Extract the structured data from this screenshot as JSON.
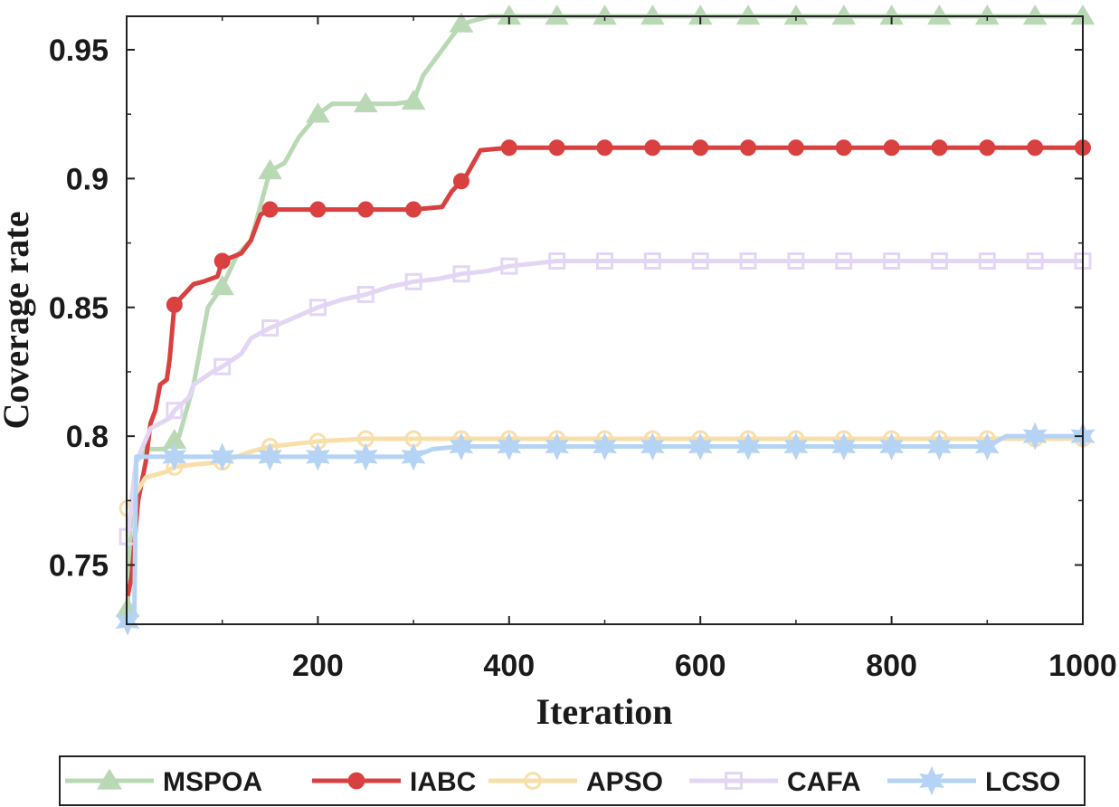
{
  "chart_data": {
    "type": "line",
    "xlabel": "Iteration",
    "ylabel": "Coverage rate",
    "xlim": [
      0,
      1000
    ],
    "ylim": [
      0.727,
      0.963
    ],
    "xticks": [
      {
        "value": 200,
        "label": "200"
      },
      {
        "value": 400,
        "label": "400"
      },
      {
        "value": 600,
        "label": "600"
      },
      {
        "value": 800,
        "label": "800"
      },
      {
        "value": 1000,
        "label": "1000"
      }
    ],
    "yticks": [
      {
        "value": 0.75,
        "label": "0.75"
      },
      {
        "value": 0.8,
        "label": "0.8"
      },
      {
        "value": 0.85,
        "label": "0.85"
      },
      {
        "value": 0.9,
        "label": "0.9"
      },
      {
        "value": 0.95,
        "label": "0.95"
      }
    ],
    "grid": false,
    "legend_position": "bottom, outside, horizontal",
    "series": [
      {
        "name": "MSPOA",
        "color": "#b9d9b4",
        "marker": "triangle",
        "points": [
          [
            1,
            0.733
          ],
          [
            5,
            0.775
          ],
          [
            10,
            0.79
          ],
          [
            20,
            0.795
          ],
          [
            40,
            0.795
          ],
          [
            55,
            0.8
          ],
          [
            70,
            0.82
          ],
          [
            85,
            0.85
          ],
          [
            100,
            0.858
          ],
          [
            115,
            0.87
          ],
          [
            130,
            0.876
          ],
          [
            150,
            0.903
          ],
          [
            165,
            0.906
          ],
          [
            180,
            0.916
          ],
          [
            200,
            0.925
          ],
          [
            215,
            0.929
          ],
          [
            250,
            0.929
          ],
          [
            280,
            0.929
          ],
          [
            300,
            0.93
          ],
          [
            310,
            0.94
          ],
          [
            330,
            0.95
          ],
          [
            350,
            0.96
          ],
          [
            380,
            0.963
          ],
          [
            400,
            0.963
          ],
          [
            1000,
            0.963
          ]
        ],
        "marker_x": [
          1,
          50,
          100,
          150,
          200,
          250,
          300,
          350,
          400,
          450,
          500,
          550,
          600,
          650,
          700,
          750,
          800,
          850,
          900,
          950,
          1000
        ]
      },
      {
        "name": "IABC",
        "color": "#d94040",
        "marker": "circle",
        "points": [
          [
            1,
            0.738
          ],
          [
            5,
            0.745
          ],
          [
            12,
            0.775
          ],
          [
            20,
            0.79
          ],
          [
            25,
            0.805
          ],
          [
            30,
            0.81
          ],
          [
            35,
            0.82
          ],
          [
            42,
            0.822
          ],
          [
            45,
            0.83
          ],
          [
            50,
            0.851
          ],
          [
            60,
            0.855
          ],
          [
            70,
            0.859
          ],
          [
            80,
            0.86
          ],
          [
            95,
            0.862
          ],
          [
            100,
            0.868
          ],
          [
            120,
            0.871
          ],
          [
            130,
            0.876
          ],
          [
            140,
            0.886
          ],
          [
            150,
            0.888
          ],
          [
            180,
            0.888
          ],
          [
            200,
            0.888
          ],
          [
            250,
            0.888
          ],
          [
            300,
            0.888
          ],
          [
            330,
            0.889
          ],
          [
            340,
            0.895
          ],
          [
            355,
            0.901
          ],
          [
            370,
            0.911
          ],
          [
            400,
            0.912
          ],
          [
            1000,
            0.912
          ]
        ],
        "marker_x": [
          50,
          100,
          150,
          200,
          250,
          300,
          350,
          400,
          450,
          500,
          550,
          600,
          650,
          700,
          750,
          800,
          850,
          900,
          950,
          1000
        ]
      },
      {
        "name": "APSO",
        "color": "#f8dfaa",
        "marker": "circle-open",
        "points": [
          [
            1,
            0.772
          ],
          [
            10,
            0.778
          ],
          [
            20,
            0.784
          ],
          [
            40,
            0.786
          ],
          [
            50,
            0.788
          ],
          [
            70,
            0.789
          ],
          [
            100,
            0.79
          ],
          [
            130,
            0.794
          ],
          [
            150,
            0.796
          ],
          [
            175,
            0.797
          ],
          [
            200,
            0.798
          ],
          [
            250,
            0.799
          ],
          [
            300,
            0.799
          ],
          [
            1000,
            0.799
          ]
        ],
        "marker_x": [
          1,
          50,
          100,
          150,
          200,
          250,
          300,
          350,
          400,
          450,
          500,
          550,
          600,
          650,
          700,
          750,
          800,
          850,
          900,
          950,
          1000
        ]
      },
      {
        "name": "CAFA",
        "color": "#e2d6f4",
        "marker": "square-open",
        "points": [
          [
            1,
            0.761
          ],
          [
            10,
            0.79
          ],
          [
            25,
            0.803
          ],
          [
            45,
            0.807
          ],
          [
            50,
            0.81
          ],
          [
            65,
            0.815
          ],
          [
            70,
            0.82
          ],
          [
            90,
            0.825
          ],
          [
            100,
            0.827
          ],
          [
            120,
            0.832
          ],
          [
            130,
            0.838
          ],
          [
            150,
            0.842
          ],
          [
            175,
            0.846
          ],
          [
            200,
            0.85
          ],
          [
            225,
            0.853
          ],
          [
            250,
            0.855
          ],
          [
            275,
            0.858
          ],
          [
            300,
            0.86
          ],
          [
            325,
            0.861
          ],
          [
            350,
            0.863
          ],
          [
            375,
            0.864
          ],
          [
            400,
            0.866
          ],
          [
            425,
            0.867
          ],
          [
            450,
            0.868
          ],
          [
            1000,
            0.868
          ]
        ],
        "marker_x": [
          1,
          50,
          100,
          150,
          200,
          250,
          300,
          350,
          400,
          450,
          500,
          550,
          600,
          650,
          700,
          750,
          800,
          850,
          900,
          950,
          1000
        ]
      },
      {
        "name": "LCSO",
        "color": "#b5d3f5",
        "marker": "hexagram",
        "points": [
          [
            1,
            0.728
          ],
          [
            8,
            0.73
          ],
          [
            10,
            0.792
          ],
          [
            50,
            0.792
          ],
          [
            100,
            0.792
          ],
          [
            300,
            0.792
          ],
          [
            320,
            0.795
          ],
          [
            350,
            0.796
          ],
          [
            900,
            0.796
          ],
          [
            920,
            0.8
          ],
          [
            1000,
            0.8
          ]
        ],
        "marker_x": [
          1,
          50,
          100,
          150,
          200,
          250,
          300,
          350,
          400,
          450,
          500,
          550,
          600,
          650,
          700,
          750,
          800,
          850,
          900,
          950,
          1000
        ]
      }
    ]
  }
}
